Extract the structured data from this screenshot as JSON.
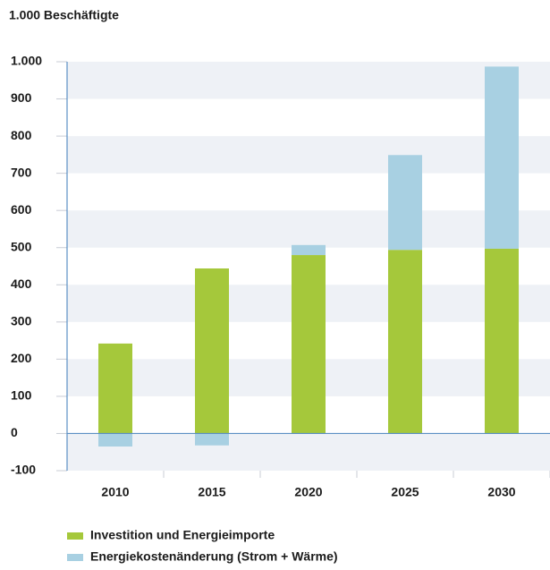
{
  "chart_data": {
    "type": "bar",
    "stacked": true,
    "title": "1.000 Beschäftigte",
    "categories": [
      "2010",
      "2015",
      "2020",
      "2025",
      "2030"
    ],
    "series": [
      {
        "name": "Investition und Energieimporte",
        "color": "#a5c83b",
        "values": [
          242,
          444,
          480,
          494,
          497
        ]
      },
      {
        "name": "Energiekostenänderung (Strom + Wärme)",
        "color": "#a8d0e2",
        "values": [
          -35,
          -32,
          27,
          255,
          490
        ]
      }
    ],
    "ylim": [
      -100,
      1000
    ],
    "yticks": [
      -100,
      0,
      100,
      200,
      300,
      400,
      500,
      600,
      700,
      800,
      900,
      {
        "value": 1000,
        "label": "1.000"
      }
    ],
    "grid": "bands",
    "band_color": "#eef1f6",
    "axis_color": "#5b8fc4",
    "legend": "bottom-left"
  }
}
